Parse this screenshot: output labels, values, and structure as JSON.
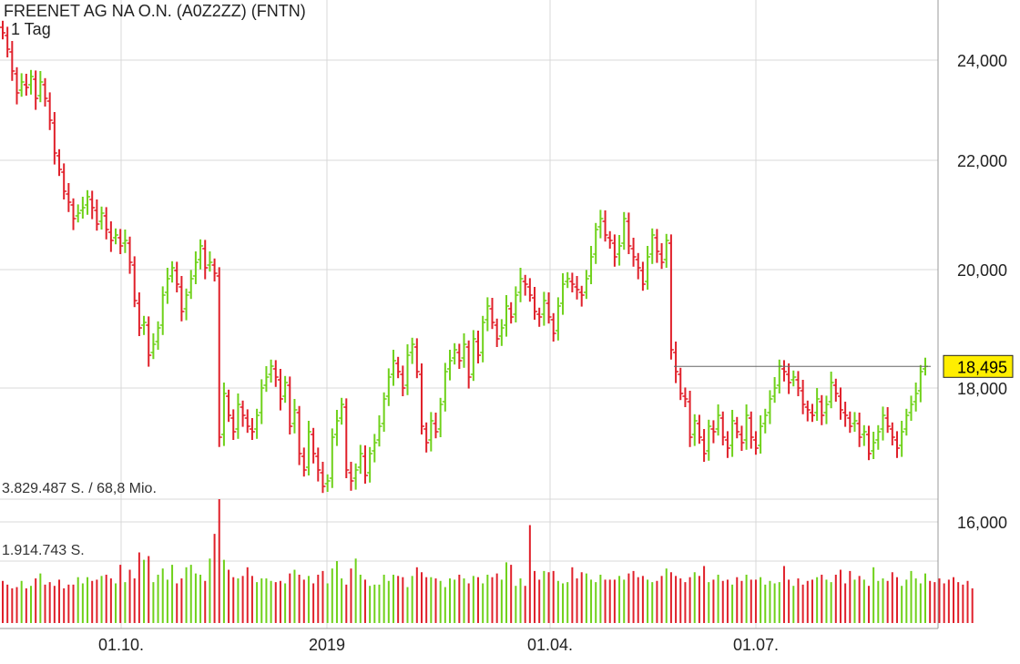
{
  "chart_data": {
    "type": "ohlc-bar",
    "title": "FREENET AG NA O.N. (A0Z2ZZ) (FNTN)",
    "subtitle": "1 Tag",
    "y_ticks": [
      "24,000",
      "22,000",
      "20,000",
      "18,000",
      "16,000"
    ],
    "y_tick_values": [
      24,
      22,
      20,
      18,
      16
    ],
    "x_ticks": [
      "01.10.",
      "2019",
      "01.04.",
      "01.07."
    ],
    "ylim": [
      15.05,
      24.95
    ],
    "last_price_label": "18,495",
    "last_price": 18.495,
    "volume_labels": [
      "3.829.487 S. / 68,8 Mio.",
      "1.914.743 S."
    ],
    "volume_max": 3829487,
    "colors": {
      "up": "#6fd11a",
      "down": "#e0202a",
      "grid": "#d8d8d8",
      "highlight": "#ffee00"
    },
    "closes": [
      24.6,
      24.3,
      23.9,
      23.5,
      23.7,
      23.6,
      23.8,
      23.4,
      23.7,
      23.4,
      23.0,
      22.4,
      22.1,
      21.7,
      21.5,
      21.2,
      21.3,
      21.4,
      21.6,
      21.4,
      21.1,
      21.3,
      21.0,
      20.8,
      20.9,
      20.7,
      20.8,
      20.4,
      19.7,
      19.2,
      19.3,
      18.7,
      18.9,
      19.2,
      19.8,
      20.1,
      20.3,
      20.0,
      19.5,
      19.8,
      20.1,
      20.4,
      20.7,
      20.3,
      20.4,
      20.2,
      17.2,
      18.0,
      17.6,
      17.3,
      17.8,
      17.6,
      17.4,
      17.3,
      17.6,
      18.1,
      18.3,
      18.5,
      18.3,
      17.9,
      18.2,
      17.4,
      17.7,
      16.9,
      16.6,
      17.3,
      16.9,
      16.6,
      16.3,
      16.4,
      17.2,
      17.5,
      17.8,
      16.6,
      16.4,
      16.6,
      16.9,
      16.5,
      16.9,
      17.1,
      17.4,
      17.9,
      18.3,
      18.6,
      18.4,
      18.1,
      18.7,
      18.9,
      18.4,
      17.4,
      17.1,
      17.5,
      17.3,
      17.8,
      18.4,
      18.6,
      18.8,
      18.6,
      18.9,
      18.3,
      19.0,
      18.7,
      19.3,
      19.6,
      19.3,
      19.0,
      19.2,
      19.6,
      19.4,
      19.8,
      20.1,
      20.0,
      19.8,
      19.5,
      19.4,
      19.7,
      19.4,
      19.1,
      19.6,
      20.0,
      20.1,
      20.0,
      19.9,
      19.8,
      20.1,
      20.5,
      21.0,
      21.2,
      20.9,
      20.8,
      20.5,
      20.7,
      21.2,
      20.7,
      20.5,
      20.3,
      20.0,
      20.5,
      20.9,
      20.6,
      20.4,
      20.8,
      18.8,
      18.4,
      18.0,
      17.9,
      17.2,
      17.5,
      17.2,
      16.9,
      17.4,
      17.3,
      17.6,
      17.2,
      17.0,
      17.5,
      17.3,
      17.1,
      17.6,
      17.2,
      17.0,
      17.4,
      17.6,
      17.9,
      18.1,
      18.5,
      18.4,
      18.2,
      18.3,
      18.1,
      17.8,
      17.7,
      17.6,
      17.9,
      17.6,
      17.8,
      18.2,
      18.0,
      17.7,
      17.6,
      17.4,
      17.5,
      17.2,
      17.3,
      16.9,
      17.1,
      17.3,
      17.6,
      17.4,
      17.2,
      17.0,
      17.3,
      17.6,
      17.8,
      18.0,
      18.4,
      18.495
    ],
    "volumes": [
      0.34,
      0.31,
      0.28,
      0.29,
      0.34,
      0.28,
      0.3,
      0.36,
      0.4,
      0.31,
      0.33,
      0.3,
      0.35,
      0.28,
      0.31,
      0.31,
      0.37,
      0.32,
      0.37,
      0.34,
      0.35,
      0.38,
      0.39,
      0.36,
      0.32,
      0.47,
      0.33,
      0.43,
      0.36,
      0.57,
      0.51,
      0.54,
      0.33,
      0.39,
      0.44,
      0.35,
      0.47,
      0.32,
      0.36,
      0.45,
      0.47,
      0.4,
      0.39,
      0.34,
      0.52,
      0.72,
      1,
      0.51,
      0.43,
      0.37,
      0.36,
      0.38,
      0.45,
      0.38,
      0.33,
      0.36,
      0.36,
      0.34,
      0.33,
      0.34,
      0.32,
      0.4,
      0.43,
      0.39,
      0.35,
      0.38,
      0.32,
      0.39,
      0.42,
      0.32,
      0.44,
      0.5,
      0.36,
      0.31,
      0.44,
      0.52,
      0.39,
      0.35,
      0.3,
      0.31,
      0.31,
      0.39,
      0.34,
      0.39,
      0.38,
      0.37,
      0.29,
      0.38,
      0.45,
      0.41,
      0.37,
      0.37,
      0.36,
      0.34,
      0.29,
      0.36,
      0.35,
      0.39,
      0.36,
      0.32,
      0.38,
      0.37,
      0.32,
      0.39,
      0.37,
      0.4,
      0.35,
      0.49,
      0.47,
      0.3,
      0.36,
      0.3,
      0.79,
      0.42,
      0.35,
      0.42,
      0.41,
      0.42,
      0.34,
      0.32,
      0.33,
      0.45,
      0.36,
      0.41,
      0.4,
      0.35,
      0.33,
      0.39,
      0.35,
      0.35,
      0.35,
      0.38,
      0.35,
      0.4,
      0.42,
      0.37,
      0.38,
      0.35,
      0.33,
      0.34,
      0.38,
      0.44,
      0.41,
      0.38,
      0.36,
      0.33,
      0.37,
      0.41,
      0.38,
      0.46,
      0.33,
      0.35,
      0.39,
      0.34,
      0.35,
      0.31,
      0.37,
      0.34,
      0.39,
      0.35,
      0.35,
      0.37,
      0.31,
      0.34,
      0.32,
      0.33,
      0.46,
      0.35,
      0.3,
      0.36,
      0.31,
      0.34,
      0.35,
      0.37,
      0.39,
      0.35,
      0.33,
      0.39,
      0.43,
      0.32,
      0.42,
      0.35,
      0.38,
      0.35,
      0.3,
      0.45,
      0.34,
      0.36,
      0.34,
      0.41,
      0.37,
      0.3,
      0.35,
      0.42,
      0.36,
      0.32,
      0.4,
      0.34,
      0.33,
      0.36,
      0.32,
      0.35,
      0.37,
      0.33,
      0.31,
      0.34,
      0.28
    ]
  }
}
